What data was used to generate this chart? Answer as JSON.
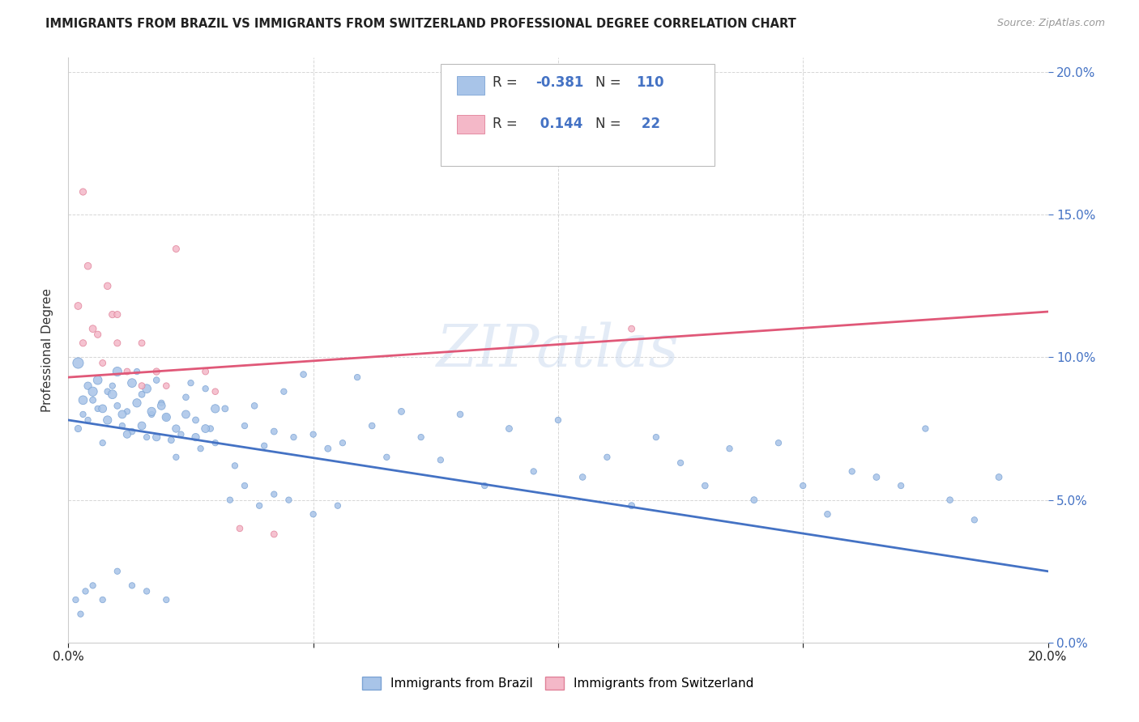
{
  "title": "IMMIGRANTS FROM BRAZIL VS IMMIGRANTS FROM SWITZERLAND PROFESSIONAL DEGREE CORRELATION CHART",
  "source": "Source: ZipAtlas.com",
  "ylabel": "Professional Degree",
  "brazil_color": "#a8c4e8",
  "brazil_edge": "#7ba3d4",
  "switzerland_color": "#f4b8c8",
  "switzerland_edge": "#e08098",
  "trend_brazil_color": "#4472c4",
  "trend_swiss_color": "#e05878",
  "watermark_color": "#c8d8ee",
  "brazil_x": [
    0.2,
    0.3,
    0.4,
    0.5,
    0.6,
    0.7,
    0.8,
    0.9,
    1.0,
    1.1,
    1.2,
    1.3,
    1.4,
    1.5,
    1.6,
    1.7,
    1.8,
    1.9,
    2.0,
    2.1,
    2.2,
    2.3,
    2.4,
    2.5,
    2.6,
    2.7,
    2.8,
    2.9,
    3.0,
    3.2,
    3.4,
    3.6,
    3.8,
    4.0,
    4.2,
    4.4,
    4.6,
    4.8,
    5.0,
    5.3,
    5.6,
    5.9,
    6.2,
    6.5,
    6.8,
    7.2,
    7.6,
    8.0,
    8.5,
    9.0,
    9.5,
    10.0,
    10.5,
    11.0,
    11.5,
    12.0,
    12.5,
    13.0,
    13.5,
    14.0,
    14.5,
    15.0,
    15.5,
    16.0,
    16.5,
    17.0,
    17.5,
    18.0,
    18.5,
    19.0,
    0.2,
    0.3,
    0.4,
    0.5,
    0.6,
    0.7,
    0.8,
    0.9,
    1.0,
    1.1,
    1.2,
    1.3,
    1.4,
    1.5,
    1.6,
    1.7,
    1.8,
    1.9,
    2.0,
    2.2,
    2.4,
    2.6,
    2.8,
    3.0,
    3.3,
    3.6,
    3.9,
    4.2,
    4.5,
    5.0,
    5.5,
    0.15,
    0.25,
    0.35,
    0.5,
    0.7,
    1.0,
    1.3,
    1.6,
    2.0
  ],
  "brazil_y": [
    7.5,
    8.0,
    7.8,
    8.5,
    8.2,
    7.0,
    8.8,
    9.0,
    8.3,
    7.6,
    8.1,
    7.4,
    9.5,
    8.7,
    7.2,
    8.0,
    9.2,
    8.4,
    7.9,
    7.1,
    6.5,
    7.3,
    8.6,
    9.1,
    7.8,
    6.8,
    8.9,
    7.5,
    7.0,
    8.2,
    6.2,
    7.6,
    8.3,
    6.9,
    7.4,
    8.8,
    7.2,
    9.4,
    7.3,
    6.8,
    7.0,
    9.3,
    7.6,
    6.5,
    8.1,
    7.2,
    6.4,
    8.0,
    5.5,
    7.5,
    6.0,
    7.8,
    5.8,
    6.5,
    4.8,
    7.2,
    6.3,
    5.5,
    6.8,
    5.0,
    7.0,
    5.5,
    4.5,
    6.0,
    5.8,
    5.5,
    7.5,
    5.0,
    4.3,
    5.8,
    9.8,
    8.5,
    9.0,
    8.8,
    9.2,
    8.2,
    7.8,
    8.7,
    9.5,
    8.0,
    7.3,
    9.1,
    8.4,
    7.6,
    8.9,
    8.1,
    7.2,
    8.3,
    7.9,
    7.5,
    8.0,
    7.2,
    7.5,
    8.2,
    5.0,
    5.5,
    4.8,
    5.2,
    5.0,
    4.5,
    4.8,
    1.5,
    1.0,
    1.8,
    2.0,
    1.5,
    2.5,
    2.0,
    1.8,
    1.5
  ],
  "brazil_size": [
    35,
    28,
    28,
    32,
    28,
    28,
    30,
    28,
    32,
    28,
    28,
    30,
    28,
    32,
    28,
    28,
    30,
    28,
    28,
    32,
    28,
    28,
    30,
    28,
    32,
    28,
    28,
    30,
    28,
    32,
    28,
    28,
    30,
    28,
    32,
    28,
    28,
    30,
    28,
    32,
    28,
    28,
    30,
    28,
    32,
    28,
    28,
    30,
    28,
    32,
    28,
    28,
    30,
    28,
    32,
    28,
    28,
    30,
    28,
    32,
    28,
    28,
    30,
    28,
    32,
    28,
    28,
    30,
    28,
    32,
    90,
    60,
    45,
    65,
    60,
    50,
    55,
    60,
    65,
    50,
    45,
    60,
    55,
    50,
    60,
    55,
    45,
    50,
    55,
    45,
    50,
    45,
    50,
    55,
    28,
    28,
    28,
    28,
    28,
    28,
    28,
    28,
    28,
    28,
    28,
    28,
    28,
    28,
    28,
    28
  ],
  "swiss_x": [
    0.2,
    0.3,
    0.4,
    0.5,
    0.6,
    0.7,
    0.8,
    0.9,
    1.0,
    1.2,
    1.5,
    1.8,
    2.2,
    2.8,
    3.5,
    4.2,
    1.0,
    1.5,
    2.0,
    3.0,
    11.5,
    0.3
  ],
  "swiss_y": [
    11.8,
    10.5,
    13.2,
    11.0,
    10.8,
    9.8,
    12.5,
    11.5,
    10.5,
    9.5,
    9.0,
    9.5,
    13.8,
    9.5,
    4.0,
    3.8,
    11.5,
    10.5,
    9.0,
    8.8,
    11.0,
    15.8
  ],
  "swiss_size": [
    40,
    35,
    38,
    40,
    35,
    32,
    38,
    36,
    34,
    32,
    32,
    36,
    34,
    32,
    30,
    32,
    34,
    32,
    30,
    30,
    32,
    35
  ],
  "xmin": 0.0,
  "xmax": 20.0,
  "ymin": 0.0,
  "ymax": 20.5,
  "yticks": [
    0.0,
    5.0,
    10.0,
    15.0,
    20.0
  ],
  "trend_brazil_x0": 0.0,
  "trend_brazil_x1": 20.0,
  "trend_brazil_y0": 7.8,
  "trend_brazil_y1": 2.5,
  "trend_swiss_x0": 0.0,
  "trend_swiss_x1": 20.0,
  "trend_swiss_y0": 9.3,
  "trend_swiss_y1": 11.6
}
